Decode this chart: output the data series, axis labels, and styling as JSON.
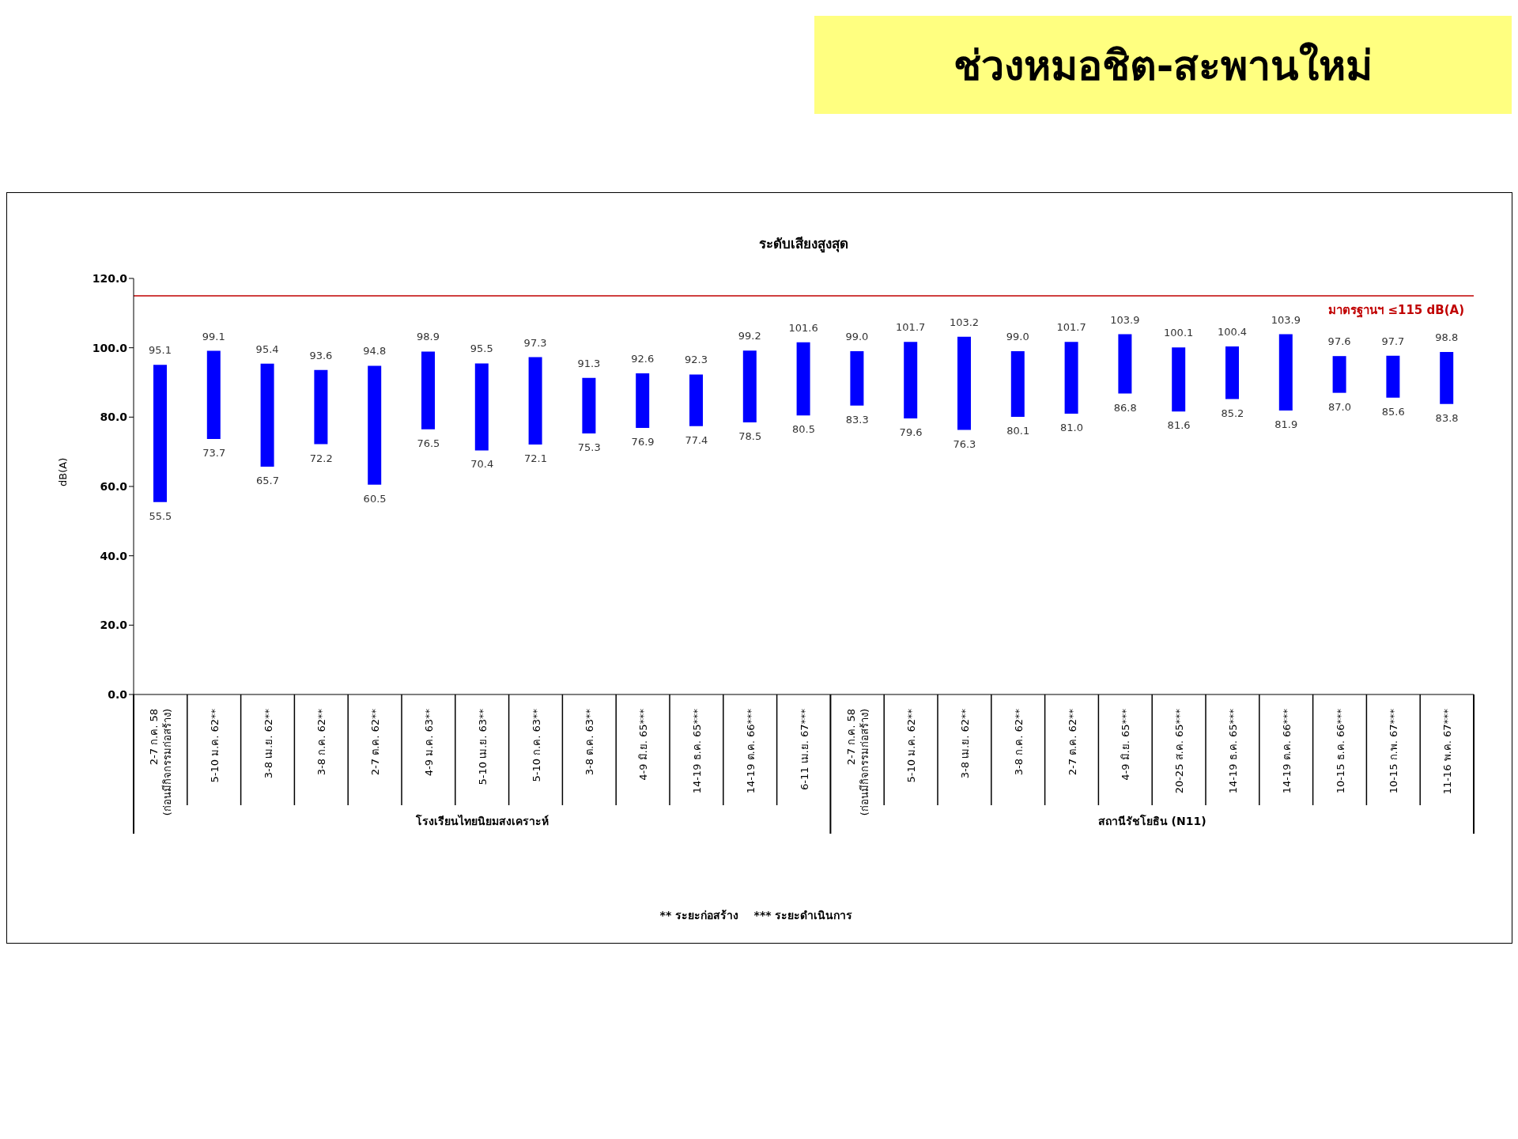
{
  "chart_data": {
    "type": "bar",
    "title": "ช่วงหมอชิต-สะพานใหม่",
    "subtitle": "ระดับเสียงสูงสุด",
    "ylabel": "dB(A)",
    "categories": [
      "2-7 ก.ค. 58\n(ก่อนมีกิจกรรมก่อสร้าง)",
      "5-10 ม.ค. 62**",
      "3-8 เม.ย. 62**",
      "3-8 ก.ค. 62**",
      "2-7 ต.ค. 62**",
      "4-9 ม.ค. 63**",
      "5-10 เม.ย. 63**",
      "5-10 ก.ค. 63**",
      "3-8 ต.ค. 63**",
      "4-9 มิ.ย. 65***",
      "14-19 ธ.ค. 65***",
      "14-19 ต.ค. 66***",
      "6-11 เม.ย. 67***",
      "2-7 ก.ค. 58\n(ก่อนมีกิจกรรมก่อสร้าง)",
      "5-10 ม.ค. 62**",
      "3-8 เม.ย. 62**",
      "3-8 ก.ค. 62**",
      "2-7 ต.ค. 62**",
      "4-9 มิ.ย. 65***",
      "20-25 ส.ค. 65***",
      "14-19 ธ.ค. 65***",
      "14-19 ต.ค. 66***",
      "10-15 ธ.ค. 66***",
      "10-15 ก.พ. 67***",
      "11-16 พ.ค. 67***"
    ],
    "base": [
      55.5,
      73.7,
      65.7,
      72.2,
      60.5,
      76.5,
      70.4,
      72.1,
      75.3,
      76.9,
      77.4,
      78.5,
      80.5,
      83.3,
      79.6,
      76.3,
      80.1,
      81.0,
      86.8,
      81.6,
      85.2,
      81.9,
      87.0,
      85.6,
      83.8
    ],
    "values": [
      39.6,
      25.4,
      29.7,
      21.4,
      34.3,
      22.4,
      25.1,
      25.2,
      16.0,
      15.7,
      14.9,
      20.7,
      21.1,
      15.7,
      22.1,
      26.9,
      18.9,
      20.7,
      17.1,
      18.5,
      15.2,
      22.0,
      10.6,
      12.1,
      15.0
    ],
    "value_labels": [
      "95.1",
      "99.1",
      "95.4",
      "93.6",
      "94.8",
      "98.9",
      "95.5",
      "97.3",
      "91.3",
      "92.6",
      "92.3",
      "99.2",
      "101.6",
      "99.0",
      "101.7",
      "103.2",
      "99.0",
      "101.7",
      "103.9",
      "100.1",
      "100.4",
      "103.9",
      "97.6",
      "97.7",
      "98.8"
    ],
    "color": "#0000ff",
    "ylim": [
      0,
      120
    ],
    "yticks": [
      {
        "value": 0,
        "label": "0.0"
      },
      {
        "value": 20,
        "label": "20.0"
      },
      {
        "value": 40,
        "label": "40.0"
      },
      {
        "value": 60,
        "label": "60.0"
      },
      {
        "value": 80,
        "label": "80.0"
      },
      {
        "value": 100,
        "label": "100.0"
      },
      {
        "value": 120,
        "label": "120.0"
      }
    ],
    "ref_lines": [
      {
        "axis": "y",
        "value": 115,
        "label": "มาตรฐานฯ ≤115 dB(A)",
        "color": "#c00000"
      }
    ],
    "grid": false,
    "legend": false,
    "annotations": [
      "โรงเรียนไทยนิยมสงเคราะห์",
      "สถานีรัชโยธิน (N11)",
      "** ระยะก่อสร้าง    *** ระยะดำเนินการ",
      {
        "text": "55.5",
        "x": "2-7 ก.ค. 58\n(ก่อนมีกิจกรรมก่อสร้าง)",
        "y": 55.5
      },
      {
        "text": "73.7",
        "x": "5-10 ม.ค. 62**",
        "y": 73.7
      },
      {
        "text": "65.7",
        "x": "3-8 เม.ย. 62**",
        "y": 65.7
      },
      {
        "text": "72.2",
        "x": "3-8 ก.ค. 62**",
        "y": 72.2
      },
      {
        "text": "60.5",
        "x": "2-7 ต.ค. 62**",
        "y": 60.5
      },
      {
        "text": "76.5",
        "x": "4-9 ม.ค. 63**",
        "y": 76.5
      },
      {
        "text": "70.4",
        "x": "5-10 เม.ย. 63**",
        "y": 70.4
      },
      {
        "text": "72.1",
        "x": "5-10 ก.ค. 63**",
        "y": 72.1
      },
      {
        "text": "75.3",
        "x": "3-8 ต.ค. 63**",
        "y": 75.3
      },
      {
        "text": "76.9",
        "x": "4-9 มิ.ย. 65***",
        "y": 76.9
      },
      {
        "text": "77.4",
        "x": "14-19 ธ.ค. 65***",
        "y": 77.4
      },
      {
        "text": "78.5",
        "x": "14-19 ต.ค. 66***",
        "y": 78.5
      },
      {
        "text": "80.5",
        "x": "6-11 เม.ย. 67***",
        "y": 80.5
      },
      {
        "text": "83.3",
        "y": 83.3
      },
      {
        "text": "79.6",
        "y": 79.6
      },
      {
        "text": "76.3",
        "y": 76.3
      },
      {
        "text": "80.1",
        "y": 80.1
      },
      {
        "text": "81.0",
        "y": 81.0
      },
      {
        "text": "86.8",
        "y": 86.8
      },
      {
        "text": "81.6",
        "x": "20-25 ส.ค. 65***",
        "y": 81.6
      },
      {
        "text": "85.2",
        "y": 85.2
      },
      {
        "text": "81.9",
        "y": 81.9
      },
      {
        "text": "87.0",
        "x": "10-15 ธ.ค. 66***",
        "y": 87.0
      },
      {
        "text": "85.6",
        "x": "10-15 ก.พ. 67***",
        "y": 85.6
      },
      {
        "text": "83.8",
        "x": "11-16 พ.ค. 67***",
        "y": 83.8
      }
    ]
  }
}
